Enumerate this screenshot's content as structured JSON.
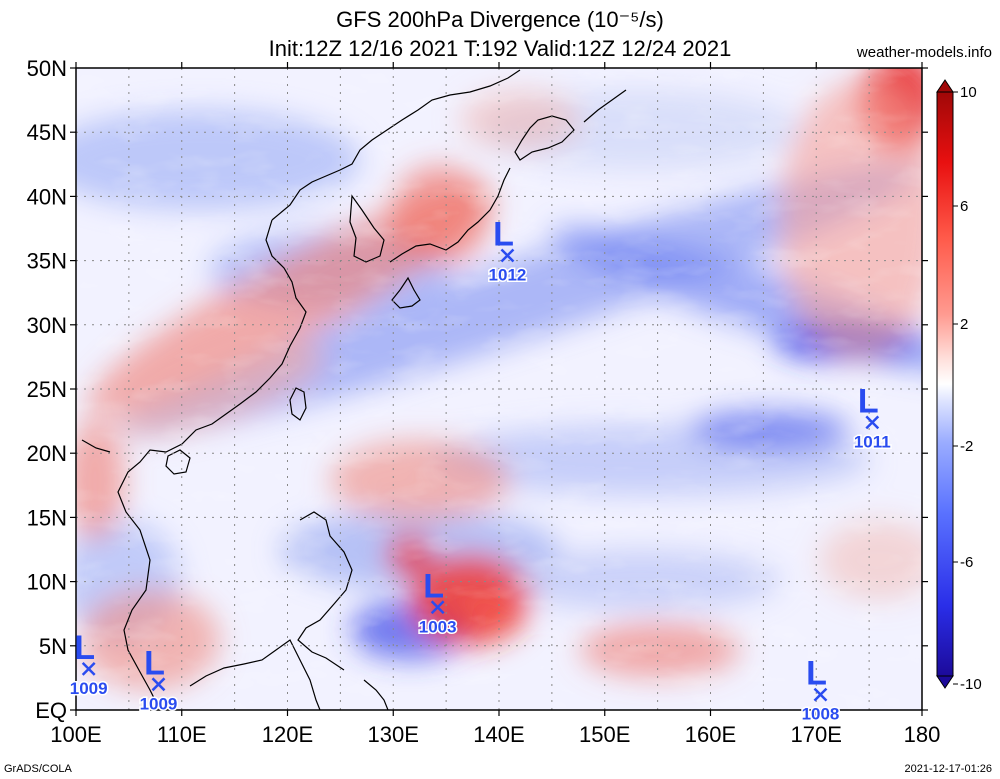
{
  "header": {
    "title": "GFS 200hPa Divergence (10⁻⁵/s)",
    "subtitle": "Init:12Z 12/16 2021 T:192 Valid:12Z 12/24 2021",
    "site": "weather-models.info"
  },
  "footer": {
    "left": "GrADS/COLA",
    "right": "2021-12-17-01:26"
  },
  "axes": {
    "lat_labels": [
      "EQ",
      "5N",
      "10N",
      "15N",
      "20N",
      "25N",
      "30N",
      "35N",
      "40N",
      "45N",
      "50N"
    ],
    "lon_labels": [
      "100E",
      "110E",
      "120E",
      "130E",
      "140E",
      "150E",
      "160E",
      "170E",
      "180"
    ],
    "lat_range": [
      0,
      50
    ],
    "lon_range": [
      100,
      180
    ]
  },
  "colorbar": {
    "labels": [
      "10",
      "6",
      "2",
      "-2",
      "-6",
      "-10"
    ],
    "colors": [
      "#1c0a9a",
      "#2a2ee8",
      "#5a72ff",
      "#9aacff",
      "#cfd7ff",
      "#ffffff",
      "#ffd2cc",
      "#ff9a90",
      "#ff5a4a",
      "#e81010",
      "#a00808"
    ]
  },
  "lows": [
    {
      "label": "L",
      "value": "1012",
      "lon": 140.8,
      "lat": 35.4
    },
    {
      "label": "L",
      "value": "1011",
      "lon": 175.3,
      "lat": 22.4
    },
    {
      "label": "L",
      "value": "1003",
      "lon": 134.2,
      "lat": 8.0
    },
    {
      "label": "L",
      "value": "1009",
      "lon": 101.2,
      "lat": 3.2
    },
    {
      "label": "L",
      "value": "1009",
      "lon": 107.8,
      "lat": 2.0
    },
    {
      "label": "L",
      "value": "1008",
      "lon": 170.4,
      "lat": 1.2
    }
  ]
}
